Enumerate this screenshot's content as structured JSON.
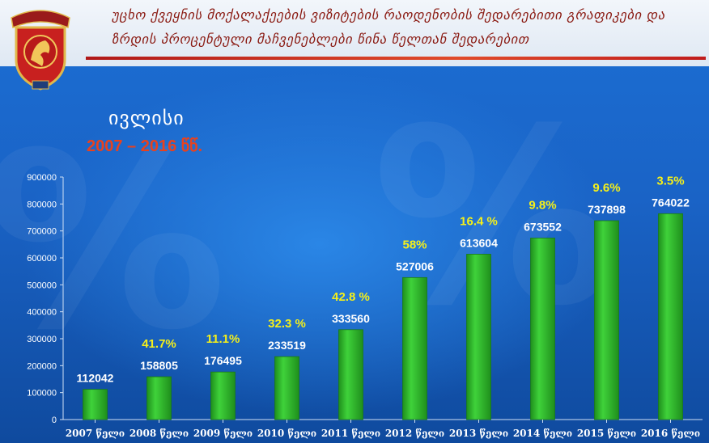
{
  "header": {
    "title": "უცხო ქვეყნის მოქალაქეების ვიზიტების რაოდენობის შედარებითი გრაფიკები და ზრდის პროცენტული მაჩვენებლები წინა წელთან შედარებით"
  },
  "colors": {
    "bar": "#3fd23a",
    "bar_dark": "#1f8f1c",
    "value_label": "#ffffff",
    "percent_label": "#f5f01a",
    "subtitle": "#e8421e",
    "axis_text": "#ffffff"
  },
  "chart_data": {
    "type": "bar",
    "title": "ივლისი",
    "subtitle": "2007 – 2016 წწ.",
    "categories": [
      "2007 წელი",
      "2008 წელი",
      "2009 წელი",
      "2010 წელი",
      "2011 წელი",
      "2012 წელი",
      "2013 წელი",
      "2014 წელი",
      "2015 წელი",
      "2016 წელი"
    ],
    "values": [
      112042,
      158805,
      176495,
      233519,
      333560,
      527006,
      613604,
      673552,
      737898,
      764022
    ],
    "value_labels": [
      "112042",
      "158805",
      "176495",
      "233519",
      "333560",
      "527006",
      "613604",
      "673552",
      "737898",
      "764022"
    ],
    "percent_labels": [
      "",
      "41.7%",
      "11.1%",
      "32.3 %",
      "42.8 %",
      "58%",
      "16.4 %",
      "9.8%",
      "9.6%",
      "3.5%"
    ],
    "yticks": [
      "0",
      "100000",
      "200000",
      "300000",
      "400000",
      "500000",
      "600000",
      "700000",
      "800000",
      "900000"
    ],
    "ylim": [
      0,
      900000
    ],
    "grid": false,
    "legend": "none"
  }
}
